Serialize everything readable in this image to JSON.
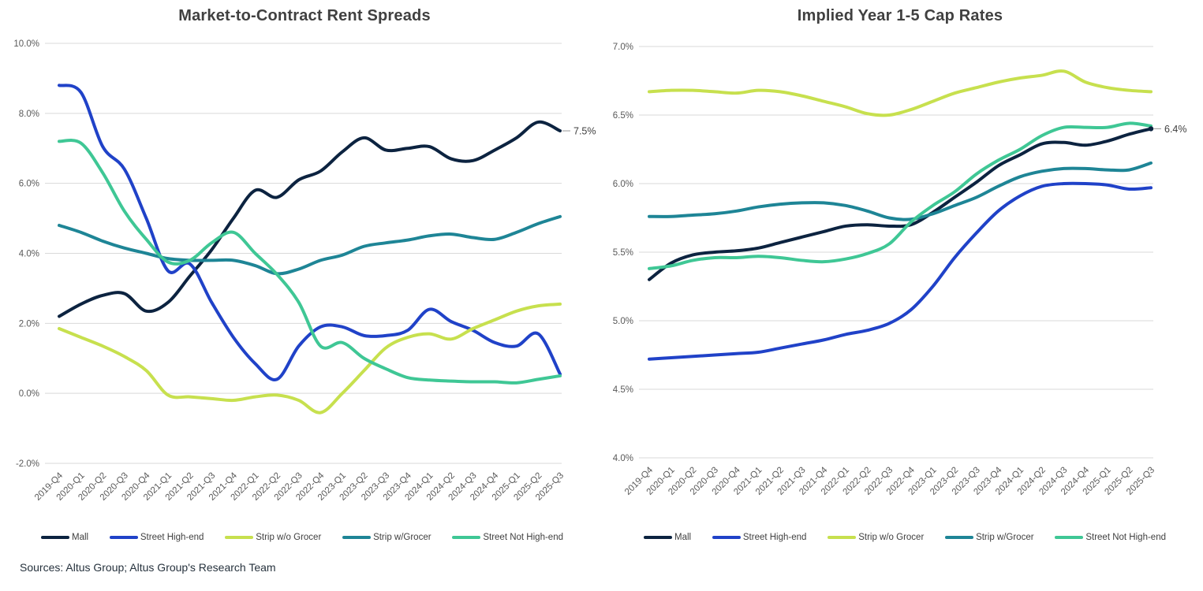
{
  "page": {
    "source_note": "Sources: Altus Group; Altus Group's Research Team"
  },
  "colors": {
    "grid": "#d9d9d9",
    "axis_text": "#595959",
    "title_text": "#404040",
    "annotation_text": "#404040",
    "annotation_dash": "#a6a6a6",
    "mall": "#0c2340",
    "street_high_end": "#2042c8",
    "strip_wo_grocer": "#c7e04e",
    "strip_w_grocer": "#1e8596",
    "street_not_high_end": "#3fc795"
  },
  "chart_data": [
    {
      "type": "line",
      "title": "Market-to-Contract Rent Spreads",
      "xlabel": "",
      "ylabel": "",
      "grid": true,
      "legend_position": "bottom",
      "ylim": [
        -2.0,
        10.0
      ],
      "yticks": [
        {
          "value": 10.0,
          "label": "10.0%"
        },
        {
          "value": 8.0,
          "label": "8.0%"
        },
        {
          "value": 6.0,
          "label": "6.0%"
        },
        {
          "value": 4.0,
          "label": "4.0%"
        },
        {
          "value": 2.0,
          "label": "2.0%"
        },
        {
          "value": 0.0,
          "label": "0.0%"
        },
        {
          "value": -2.0,
          "label": "-2.0%"
        }
      ],
      "categories": [
        "2019-Q4",
        "2020-Q1",
        "2020-Q2",
        "2020-Q3",
        "2020-Q4",
        "2021-Q1",
        "2021-Q2",
        "2021-Q3",
        "2021-Q4",
        "2022-Q1",
        "2022-Q2",
        "2022-Q3",
        "2022-Q4",
        "2023-Q1",
        "2023-Q2",
        "2023-Q3",
        "2023-Q4",
        "2024-Q1",
        "2024-Q2",
        "2024-Q3",
        "2024-Q4",
        "2025-Q1",
        "2025-Q2",
        "2025-Q3"
      ],
      "series": [
        {
          "name": "Mall",
          "color_key": "mall",
          "values": [
            2.2,
            2.55,
            2.8,
            2.85,
            2.35,
            2.6,
            3.35,
            4.1,
            5.0,
            5.8,
            5.6,
            6.1,
            6.35,
            6.9,
            7.3,
            6.95,
            7.0,
            7.05,
            6.7,
            6.65,
            6.95,
            7.3,
            7.75,
            7.5
          ]
        },
        {
          "name": "Street High-end",
          "color_key": "street_high_end",
          "values": [
            8.8,
            8.6,
            7.05,
            6.4,
            5.0,
            3.5,
            3.7,
            2.6,
            1.6,
            0.85,
            0.4,
            1.35,
            1.9,
            1.9,
            1.65,
            1.65,
            1.8,
            2.4,
            2.05,
            1.8,
            1.45,
            1.35,
            1.7,
            0.55
          ]
        },
        {
          "name": "Strip w/o Grocer",
          "color_key": "strip_wo_grocer",
          "values": [
            1.85,
            1.6,
            1.35,
            1.05,
            0.65,
            -0.05,
            -0.1,
            -0.15,
            -0.2,
            -0.1,
            -0.05,
            -0.2,
            -0.55,
            0.0,
            0.65,
            1.3,
            1.6,
            1.7,
            1.55,
            1.85,
            2.1,
            2.35,
            2.5,
            2.55
          ]
        },
        {
          "name": "Strip w/Grocer",
          "color_key": "strip_w_grocer",
          "values": [
            4.8,
            4.6,
            4.35,
            4.15,
            4.0,
            3.85,
            3.8,
            3.8,
            3.8,
            3.65,
            3.42,
            3.55,
            3.8,
            3.95,
            4.2,
            4.3,
            4.38,
            4.5,
            4.55,
            4.45,
            4.4,
            4.6,
            4.85,
            5.05
          ]
        },
        {
          "name": "Street Not High-end",
          "color_key": "street_not_high_end",
          "values": [
            7.2,
            7.15,
            6.3,
            5.2,
            4.4,
            3.75,
            3.8,
            4.3,
            4.6,
            4.0,
            3.4,
            2.6,
            1.35,
            1.45,
            1.0,
            0.7,
            0.45,
            0.38,
            0.35,
            0.33,
            0.33,
            0.3,
            0.4,
            0.5
          ]
        }
      ],
      "annotation": {
        "text": "7.5%",
        "series": "Mall",
        "at_value": 7.5,
        "dot": false
      }
    },
    {
      "type": "line",
      "title": "Implied Year 1-5 Cap Rates",
      "xlabel": "",
      "ylabel": "",
      "grid": true,
      "legend_position": "bottom",
      "ylim": [
        4.0,
        7.0
      ],
      "yticks": [
        {
          "value": 7.0,
          "label": "7.0%"
        },
        {
          "value": 6.5,
          "label": "6.5%"
        },
        {
          "value": 6.0,
          "label": "6.0%"
        },
        {
          "value": 5.5,
          "label": "5.5%"
        },
        {
          "value": 5.0,
          "label": "5.0%"
        },
        {
          "value": 4.5,
          "label": "4.5%"
        },
        {
          "value": 4.0,
          "label": "4.0%"
        }
      ],
      "categories": [
        "2019-Q4",
        "2020-Q1",
        "2020-Q2",
        "2020-Q3",
        "2020-Q4",
        "2021-Q1",
        "2021-Q2",
        "2021-Q3",
        "2021-Q4",
        "2022-Q1",
        "2022-Q2",
        "2022-Q3",
        "2022-Q4",
        "2023-Q1",
        "2023-Q2",
        "2023-Q3",
        "2023-Q4",
        "2024-Q1",
        "2024-Q2",
        "2024-Q3",
        "2024-Q4",
        "2025-Q1",
        "2025-Q2",
        "2025-Q3"
      ],
      "series": [
        {
          "name": "Mall",
          "color_key": "mall",
          "values": [
            5.3,
            5.42,
            5.48,
            5.5,
            5.51,
            5.53,
            5.57,
            5.61,
            5.65,
            5.69,
            5.7,
            5.69,
            5.7,
            5.79,
            5.9,
            6.01,
            6.13,
            6.21,
            6.29,
            6.3,
            6.28,
            6.31,
            6.36,
            6.4
          ]
        },
        {
          "name": "Street High-end",
          "color_key": "street_high_end",
          "values": [
            4.72,
            4.73,
            4.74,
            4.75,
            4.76,
            4.77,
            4.8,
            4.83,
            4.86,
            4.9,
            4.93,
            4.98,
            5.08,
            5.25,
            5.46,
            5.64,
            5.8,
            5.91,
            5.98,
            6.0,
            6.0,
            5.99,
            5.96,
            5.97
          ]
        },
        {
          "name": "Strip w/o Grocer",
          "color_key": "strip_wo_grocer",
          "values": [
            6.67,
            6.68,
            6.68,
            6.67,
            6.66,
            6.68,
            6.67,
            6.64,
            6.6,
            6.56,
            6.51,
            6.5,
            6.54,
            6.6,
            6.66,
            6.7,
            6.74,
            6.77,
            6.79,
            6.82,
            6.74,
            6.7,
            6.68,
            6.67
          ]
        },
        {
          "name": "Strip w/Grocer",
          "color_key": "strip_w_grocer",
          "values": [
            5.76,
            5.76,
            5.77,
            5.78,
            5.8,
            5.83,
            5.85,
            5.86,
            5.86,
            5.84,
            5.8,
            5.75,
            5.74,
            5.78,
            5.84,
            5.9,
            5.98,
            6.05,
            6.09,
            6.11,
            6.11,
            6.1,
            6.1,
            6.15
          ]
        },
        {
          "name": "Street Not High-end",
          "color_key": "street_not_high_end",
          "values": [
            5.38,
            5.4,
            5.44,
            5.46,
            5.46,
            5.47,
            5.46,
            5.44,
            5.43,
            5.45,
            5.49,
            5.56,
            5.72,
            5.84,
            5.94,
            6.07,
            6.17,
            6.25,
            6.35,
            6.41,
            6.41,
            6.41,
            6.44,
            6.42
          ]
        }
      ],
      "annotation": {
        "text": "6.4%",
        "series": "Mall",
        "at_value": 6.4,
        "dot": true
      }
    }
  ]
}
